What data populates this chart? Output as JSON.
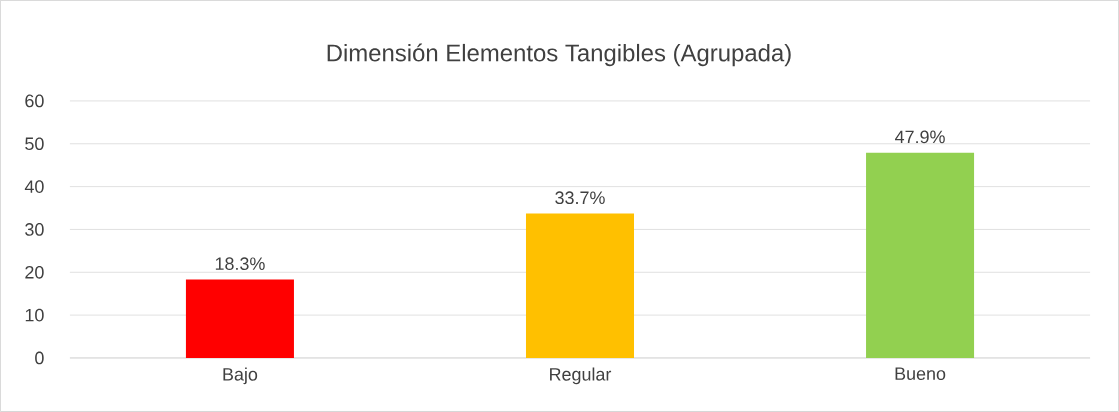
{
  "chart_data": {
    "type": "bar",
    "title": "Dimensión Elementos Tangibles (Agrupada)",
    "categories": [
      "Bajo",
      "Regular",
      "Bueno"
    ],
    "values": [
      18.3,
      33.7,
      47.9
    ],
    "value_labels": [
      "18.3%",
      "33.7%",
      "47.9%"
    ],
    "colors": [
      "#ff0000",
      "#ffc000",
      "#92d050"
    ],
    "ylim": [
      0,
      60
    ],
    "yticks": [
      0,
      10,
      20,
      30,
      40,
      50,
      60
    ],
    "grid": "y"
  }
}
